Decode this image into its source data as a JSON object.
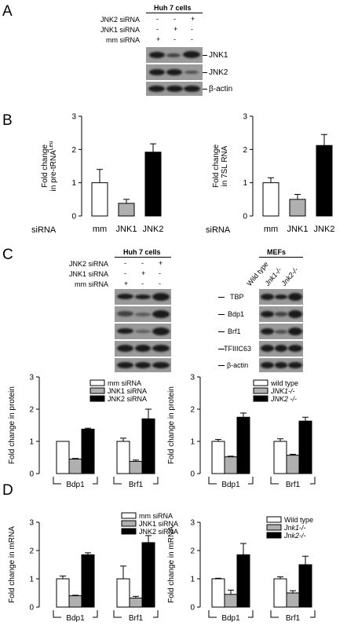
{
  "panels": [
    "A",
    "B",
    "C",
    "D"
  ],
  "panel_a": {
    "header": "Huh 7 cells",
    "rows": [
      {
        "label": "JNK2 siRNA",
        "signs": [
          "-",
          "-",
          "+"
        ]
      },
      {
        "label": "JNK1 siRNA",
        "signs": [
          "-",
          "+",
          "-"
        ]
      },
      {
        "label": "mm siRNA",
        "signs": [
          "+",
          "-",
          "-"
        ]
      }
    ],
    "blots": [
      "JNK1",
      "JNK2",
      "β-actin"
    ]
  },
  "panel_c_blots": {
    "huh_header": "Huh 7 cells",
    "mef_header": "MEFs",
    "rows": [
      {
        "label": "JNK2 siRNA",
        "signs": [
          "-",
          "-",
          "+"
        ]
      },
      {
        "label": "JNK1 siRNA",
        "signs": [
          "-",
          "+",
          "-"
        ]
      },
      {
        "label": "mm siRNA",
        "signs": [
          "+",
          "-",
          "-"
        ]
      }
    ],
    "mef_columns": [
      "Wild type",
      "Jnk1-/-",
      "Jnk2-/-"
    ],
    "blots": [
      "TBP",
      "Bdp1",
      "Brf1",
      "TFIIIC63",
      "β-actin"
    ]
  },
  "siRNA_label": "siRNA",
  "chart_data": [
    {
      "id": "B-left",
      "type": "bar",
      "categories": [
        "mm",
        "JNK1",
        "JNK2"
      ],
      "values": [
        1.0,
        0.38,
        1.92
      ],
      "errors": [
        0.4,
        0.12,
        0.25
      ],
      "ylabel": "Fold change in pre-tRNA Leu",
      "ylim": [
        0,
        3
      ],
      "yticks": [
        0,
        1,
        2,
        3
      ],
      "colors": [
        "#ffffff",
        "#b0b0b0",
        "#000000"
      ]
    },
    {
      "id": "B-right",
      "type": "bar",
      "categories": [
        "mm",
        "JNK1",
        "JNK2"
      ],
      "values": [
        1.0,
        0.5,
        2.12
      ],
      "errors": [
        0.15,
        0.15,
        0.33
      ],
      "ylabel": "Fold change in 7SL RNA",
      "ylim": [
        0,
        3
      ],
      "yticks": [
        0,
        1,
        2,
        3
      ],
      "colors": [
        "#ffffff",
        "#b0b0b0",
        "#000000"
      ]
    },
    {
      "id": "C-left",
      "type": "bar",
      "groups": [
        "Bdp1",
        "Brf1"
      ],
      "series": [
        {
          "name": "mm siRNA",
          "color": "#ffffff",
          "values": [
            1.0,
            1.0
          ],
          "errors": [
            0.0,
            0.1
          ]
        },
        {
          "name": "JNK1 siRNA",
          "color": "#b0b0b0",
          "values": [
            0.45,
            0.38
          ],
          "errors": [
            0.02,
            0.04
          ]
        },
        {
          "name": "JNK2 siRNA",
          "color": "#000000",
          "values": [
            1.38,
            1.7
          ],
          "errors": [
            0.03,
            0.3
          ]
        }
      ],
      "ylabel": "Fold change in protein",
      "ylim": [
        0,
        3
      ],
      "yticks": [
        0,
        1,
        2,
        3
      ]
    },
    {
      "id": "C-right",
      "type": "bar",
      "groups": [
        "Bdp1",
        "Brf1"
      ],
      "series": [
        {
          "name": "wild type",
          "color": "#ffffff",
          "values": [
            1.0,
            1.0
          ],
          "errors": [
            0.06,
            0.08
          ]
        },
        {
          "name": "JNK1-/-",
          "color": "#b0b0b0",
          "values": [
            0.52,
            0.57
          ],
          "errors": [
            0.02,
            0.03
          ]
        },
        {
          "name": "JNK2 -/-",
          "color": "#000000",
          "values": [
            1.75,
            1.63
          ],
          "errors": [
            0.13,
            0.12
          ]
        }
      ],
      "ylabel": "Fold change in protein",
      "ylim": [
        0,
        3
      ],
      "yticks": [
        0,
        1,
        2,
        3
      ]
    },
    {
      "id": "D-left",
      "type": "bar",
      "groups": [
        "Bdp1",
        "Brf1"
      ],
      "series": [
        {
          "name": "mm siRNA",
          "color": "#ffffff",
          "values": [
            1.0,
            1.0
          ],
          "errors": [
            0.1,
            0.45
          ]
        },
        {
          "name": "JNK1 siRNA",
          "color": "#b0b0b0",
          "values": [
            0.4,
            0.32
          ],
          "errors": [
            0.02,
            0.06
          ]
        },
        {
          "name": "JNK2 siRNA",
          "color": "#000000",
          "values": [
            1.85,
            2.28
          ],
          "errors": [
            0.07,
            0.25
          ]
        }
      ],
      "ylabel": "Fold change in mRNA",
      "ylim": [
        0,
        3
      ],
      "yticks": [
        0,
        1,
        2,
        3
      ]
    },
    {
      "id": "D-right",
      "type": "bar",
      "groups": [
        "Bdp1",
        "Brf1"
      ],
      "series": [
        {
          "name": "Wild type",
          "color": "#ffffff",
          "values": [
            1.0,
            1.0
          ],
          "errors": [
            0.02,
            0.07
          ]
        },
        {
          "name": "Jnk1-/-",
          "color": "#b0b0b0",
          "values": [
            0.45,
            0.5
          ],
          "errors": [
            0.15,
            0.08
          ]
        },
        {
          "name": "Jnk2-/-",
          "color": "#000000",
          "values": [
            1.85,
            1.5
          ],
          "errors": [
            0.4,
            0.3
          ]
        }
      ],
      "ylabel": "Fold change in mRNA",
      "ylim": [
        0,
        3
      ],
      "yticks": [
        0,
        1,
        2,
        3
      ]
    }
  ]
}
